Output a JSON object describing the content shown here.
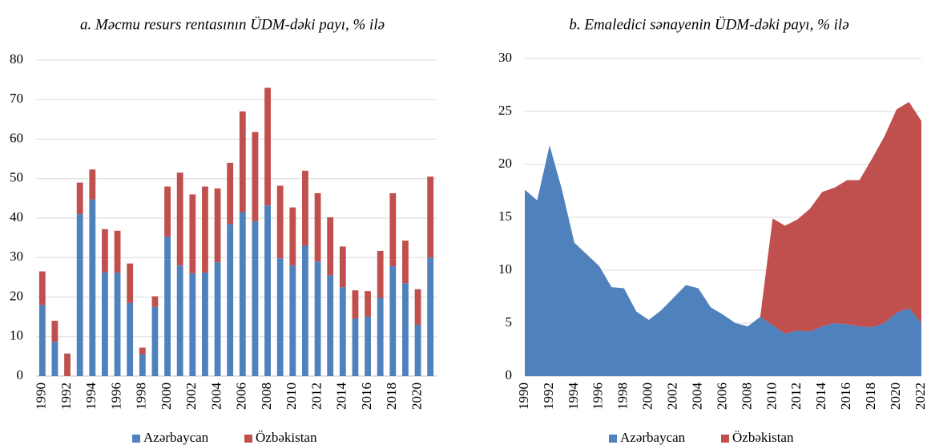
{
  "chart_data": [
    {
      "type": "bar",
      "title": "a. Məcmu resurs rentasının ÜDM-dəki payı, % ilə",
      "categories": [
        "1990",
        null,
        "1992",
        null,
        "1994",
        null,
        "1996",
        null,
        "1998",
        null,
        "2000",
        null,
        "2002",
        null,
        "2004",
        null,
        "2006",
        null,
        "2008",
        null,
        "2010",
        null,
        "2012",
        null,
        "2014",
        null,
        "2016",
        null,
        "2018",
        null,
        "2020",
        null
      ],
      "series": [
        {
          "name": "Azərbaycan",
          "color": "#4f81bd",
          "values": [
            18,
            8.7,
            0,
            41,
            44.7,
            26.3,
            26.2,
            18.5,
            5.5,
            17.5,
            35.3,
            28,
            26,
            26.2,
            28.8,
            38.5,
            41.5,
            39.2,
            43.2,
            29.8,
            28,
            33,
            29,
            25.5,
            22.5,
            14.5,
            15,
            19.8,
            27.8,
            23.5,
            13,
            30
          ]
        },
        {
          "name": "Özbəkistan",
          "color": "#c0504d",
          "values": [
            8.5,
            5.3,
            5.7,
            8,
            7.6,
            10.9,
            10.6,
            10,
            1.7,
            2.7,
            12.7,
            23.5,
            20,
            21.8,
            18.7,
            15.5,
            25.5,
            22.6,
            29.8,
            18.4,
            14.7,
            19,
            17.3,
            14.7,
            10.3,
            7.2,
            6.5,
            11.9,
            18.5,
            10.8,
            9,
            20.5
          ]
        }
      ],
      "ylim": [
        0,
        80
      ],
      "yticks": [
        0,
        10,
        20,
        30,
        40,
        50,
        60,
        70,
        80
      ],
      "grid": true,
      "stacked": true,
      "legend": "bottom"
    },
    {
      "type": "area",
      "title": "b. Emaledici sənayenin ÜDM-dəki payı, % ilə",
      "categories": [
        "1990",
        null,
        "1992",
        null,
        "1994",
        null,
        "1996",
        null,
        "1998",
        null,
        "2000",
        null,
        "2002",
        null,
        "2004",
        null,
        "2006",
        null,
        "2008",
        null,
        "2010",
        null,
        "2012",
        null,
        "2014",
        null,
        "2016",
        null,
        "2018",
        null,
        "2020",
        null,
        "2022"
      ],
      "series": [
        {
          "name": "Azərbaycan",
          "color": "#4f81bd",
          "values": [
            17.6,
            16.6,
            21.8,
            17.6,
            12.6,
            11.5,
            10.4,
            8.4,
            8.3,
            6.1,
            5.3,
            6.2,
            7.4,
            8.6,
            8.3,
            6.5,
            5.8,
            5.0,
            4.7,
            5.6,
            4.8,
            4.0,
            4.3,
            4.2,
            4.7,
            5.0,
            4.9,
            4.7,
            4.6,
            5.0,
            6.0,
            6.4,
            5.0
          ]
        },
        {
          "name": "Özbəkistan",
          "color": "#c0504d",
          "values": [
            null,
            null,
            null,
            null,
            null,
            null,
            null,
            null,
            null,
            null,
            null,
            null,
            null,
            null,
            null,
            null,
            null,
            null,
            null,
            0,
            10.1,
            10.2,
            10.5,
            11.6,
            12.7,
            12.8,
            13.6,
            13.8,
            15.9,
            17.6,
            19.2,
            19.5,
            19.1
          ]
        }
      ],
      "ylim": [
        0,
        30
      ],
      "yticks": [
        0,
        5,
        10,
        15,
        20,
        25,
        30
      ],
      "grid": true,
      "stacked": true,
      "legend": "bottom"
    }
  ]
}
